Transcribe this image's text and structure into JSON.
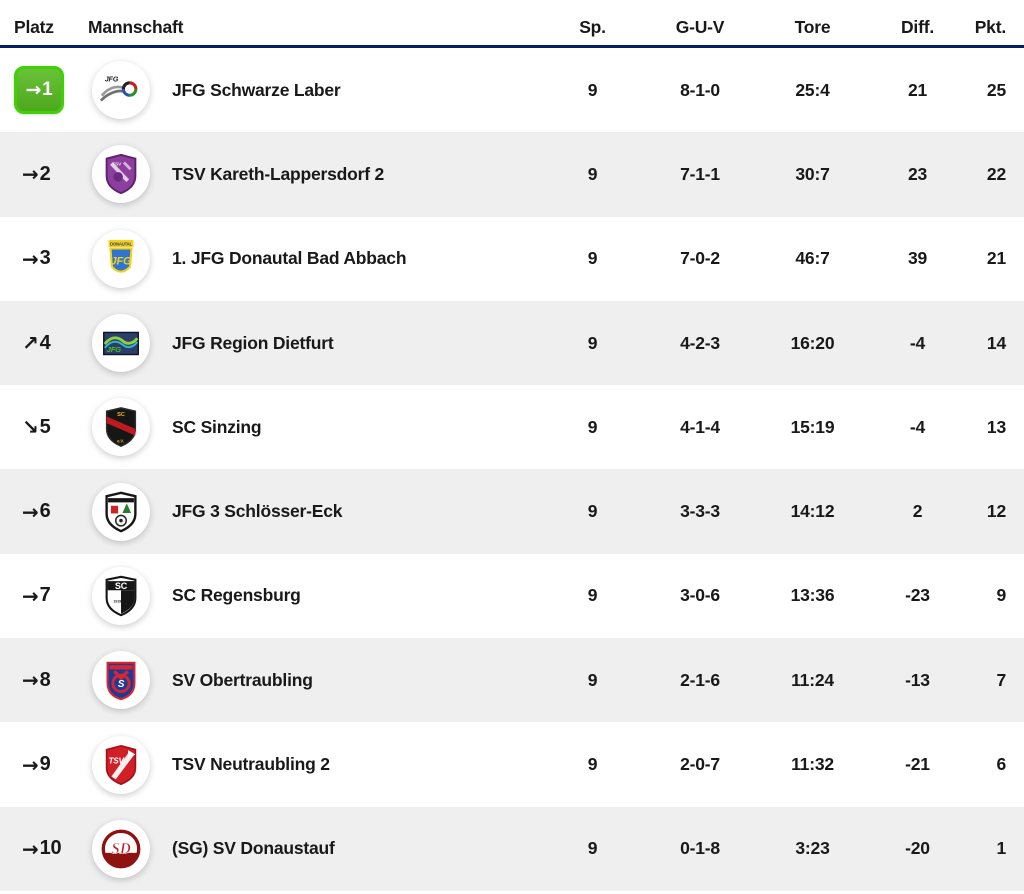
{
  "header": {
    "platz": "Platz",
    "mannschaft": "Mannschaft",
    "sp": "Sp.",
    "guv": "G-U-V",
    "tore": "Tore",
    "diff": "Diff.",
    "pkt": "Pkt."
  },
  "trend_icons": {
    "right": "→",
    "up": "↗",
    "down": "↘"
  },
  "rows": [
    {
      "platz": "1",
      "trend": "right",
      "highlight": true,
      "logo": "jfg-schwarze-laber-logo",
      "team": "JFG Schwarze Laber",
      "sp": "9",
      "guv": "8-1-0",
      "tore": "25:4",
      "diff": "21",
      "pkt": "25"
    },
    {
      "platz": "2",
      "trend": "right",
      "highlight": false,
      "logo": "tsv-kareth-lappersdorf-logo",
      "team": "TSV Kareth-Lappersdorf 2",
      "sp": "9",
      "guv": "7-1-1",
      "tore": "30:7",
      "diff": "23",
      "pkt": "22"
    },
    {
      "platz": "3",
      "trend": "right",
      "highlight": false,
      "logo": "jfg-donautal-logo",
      "team": "1. JFG Donautal Bad Abbach",
      "sp": "9",
      "guv": "7-0-2",
      "tore": "46:7",
      "diff": "39",
      "pkt": "21"
    },
    {
      "platz": "4",
      "trend": "up",
      "highlight": false,
      "logo": "jfg-region-dietfurt-logo",
      "team": "JFG Region Dietfurt",
      "sp": "9",
      "guv": "4-2-3",
      "tore": "16:20",
      "diff": "-4",
      "pkt": "14"
    },
    {
      "platz": "5",
      "trend": "down",
      "highlight": false,
      "logo": "sc-sinzing-logo",
      "team": "SC Sinzing",
      "sp": "9",
      "guv": "4-1-4",
      "tore": "15:19",
      "diff": "-4",
      "pkt": "13"
    },
    {
      "platz": "6",
      "trend": "right",
      "highlight": false,
      "logo": "jfg-3-schloesser-eck-logo",
      "team": "JFG 3 Schlösser-Eck",
      "sp": "9",
      "guv": "3-3-3",
      "tore": "14:12",
      "diff": "2",
      "pkt": "12"
    },
    {
      "platz": "7",
      "trend": "right",
      "highlight": false,
      "logo": "sc-regensburg-logo",
      "team": "SC Regensburg",
      "sp": "9",
      "guv": "3-0-6",
      "tore": "13:36",
      "diff": "-23",
      "pkt": "9"
    },
    {
      "platz": "8",
      "trend": "right",
      "highlight": false,
      "logo": "sv-obertraubling-logo",
      "team": "SV Obertraubling",
      "sp": "9",
      "guv": "2-1-6",
      "tore": "11:24",
      "diff": "-13",
      "pkt": "7"
    },
    {
      "platz": "9",
      "trend": "right",
      "highlight": false,
      "logo": "tsv-neutraubling-logo",
      "team": "TSV Neutraubling 2",
      "sp": "9",
      "guv": "2-0-7",
      "tore": "11:32",
      "diff": "-21",
      "pkt": "6"
    },
    {
      "platz": "10",
      "trend": "right",
      "highlight": false,
      "logo": "sv-donaustauf-logo",
      "team": "(SG) SV Donaustauf",
      "sp": "9",
      "guv": "0-1-8",
      "tore": "3:23",
      "diff": "-20",
      "pkt": "1"
    }
  ],
  "colors": {
    "highlight_badge_fill": "#55b026",
    "highlight_badge_border": "#3fd104",
    "header_rule": "#00205f",
    "row_alt_background": "#efefef",
    "text": "#191919"
  }
}
